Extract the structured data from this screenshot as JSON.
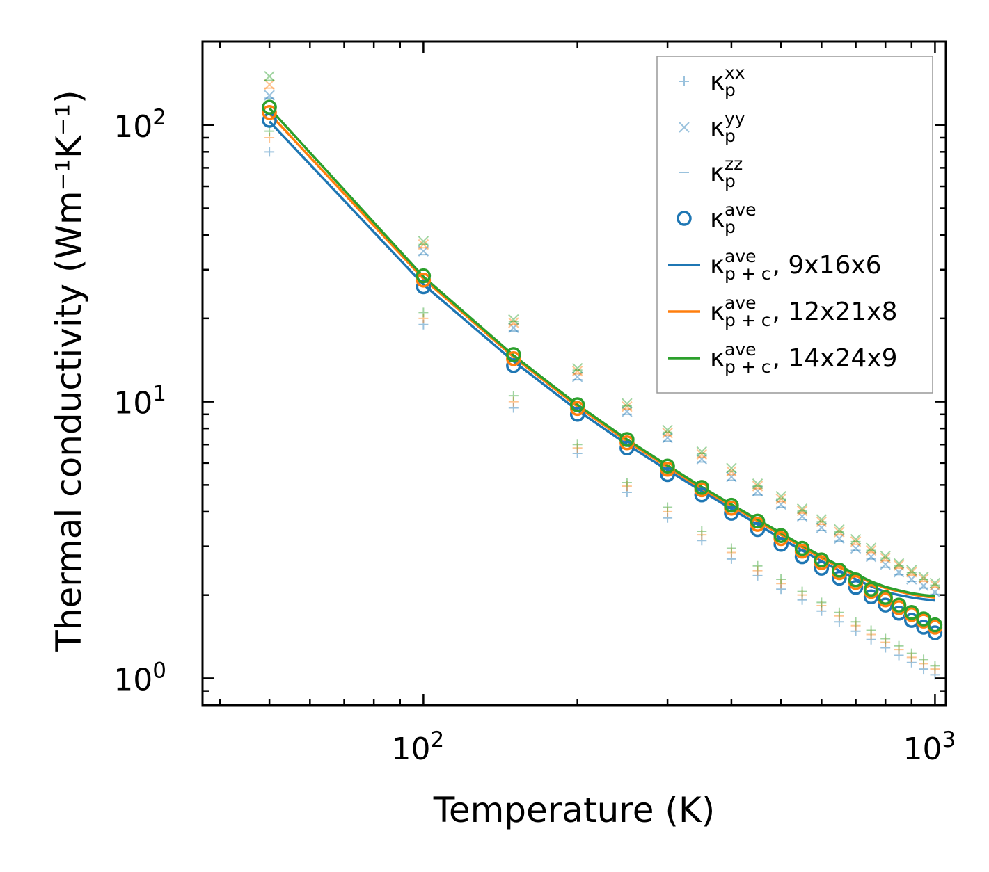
{
  "chart_data": {
    "type": "scatter",
    "xlabel": "Temperature (K)",
    "ylabel": "Thermal conductivity (Wm⁻¹K⁻¹)",
    "xscale": "log",
    "yscale": "log",
    "xlim": [
      37,
      1050
    ],
    "ylim": [
      0.8,
      200
    ],
    "x_ticks": [
      {
        "base": "10",
        "exp": "2",
        "value": 100
      },
      {
        "base": "10",
        "exp": "3",
        "value": 1000
      }
    ],
    "y_ticks": [
      {
        "base": "10",
        "exp": "0",
        "value": 1
      },
      {
        "base": "10",
        "exp": "1",
        "value": 10
      },
      {
        "base": "10",
        "exp": "2",
        "value": 100
      }
    ],
    "x": [
      50,
      100,
      150,
      200,
      250,
      300,
      350,
      400,
      450,
      500,
      550,
      600,
      650,
      700,
      750,
      800,
      850,
      900,
      950,
      1000
    ],
    "colors": {
      "blue": "#1f77b4",
      "orange": "#ff7f0e",
      "green": "#2ca02c"
    },
    "legend_position": "top-right",
    "meshes": [
      {
        "name": "9x16x6",
        "color_key": "blue",
        "kxx": [
          80,
          19,
          9.5,
          6.5,
          4.7,
          3.8,
          3.15,
          2.7,
          2.35,
          2.1,
          1.92,
          1.75,
          1.6,
          1.48,
          1.38,
          1.29,
          1.21,
          1.14,
          1.08,
          1.03
        ],
        "kyy": [
          128,
          35,
          18.5,
          12.3,
          9.2,
          7.4,
          6.2,
          5.35,
          4.75,
          4.25,
          3.85,
          3.5,
          3.2,
          2.95,
          2.75,
          2.58,
          2.42,
          2.28,
          2.16,
          2.05
        ],
        "kzz": [
          125,
          34,
          18,
          12,
          9,
          7.2,
          6.05,
          5.2,
          4.6,
          4.15,
          3.75,
          3.42,
          3.13,
          2.9,
          2.7,
          2.52,
          2.37,
          2.24,
          2.12,
          2.01
        ],
        "kave": [
          104,
          26,
          13.5,
          9.0,
          6.8,
          5.45,
          4.6,
          3.95,
          3.45,
          3.05,
          2.75,
          2.5,
          2.3,
          2.13,
          1.97,
          1.84,
          1.72,
          1.62,
          1.53,
          1.46
        ],
        "line": [
          103,
          26.5,
          14.0,
          9.3,
          7.0,
          5.65,
          4.75,
          4.1,
          3.6,
          3.2,
          2.9,
          2.65,
          2.45,
          2.28,
          2.15,
          2.05,
          2.0,
          1.96,
          1.93,
          1.91
        ]
      },
      {
        "name": "12x21x8",
        "color_key": "orange",
        "kxx": [
          90,
          20,
          10,
          6.8,
          4.95,
          4.0,
          3.3,
          2.85,
          2.45,
          2.2,
          2.0,
          1.83,
          1.68,
          1.55,
          1.44,
          1.35,
          1.27,
          1.19,
          1.13,
          1.08
        ],
        "kyy": [
          140,
          37,
          19.3,
          12.9,
          9.6,
          7.7,
          6.45,
          5.6,
          4.95,
          4.45,
          4.03,
          3.68,
          3.38,
          3.12,
          2.9,
          2.72,
          2.56,
          2.42,
          2.29,
          2.17
        ],
        "kzz": [
          136,
          36,
          19,
          12.6,
          9.4,
          7.55,
          6.3,
          5.45,
          4.85,
          4.35,
          3.95,
          3.6,
          3.3,
          3.05,
          2.85,
          2.66,
          2.5,
          2.36,
          2.24,
          2.13
        ],
        "kave": [
          111,
          27.5,
          14.3,
          9.45,
          7.1,
          5.7,
          4.8,
          4.12,
          3.6,
          3.2,
          2.88,
          2.62,
          2.41,
          2.22,
          2.06,
          1.92,
          1.8,
          1.7,
          1.61,
          1.53
        ],
        "line": [
          110,
          27.8,
          14.5,
          9.6,
          7.2,
          5.8,
          4.85,
          4.2,
          3.7,
          3.3,
          2.98,
          2.72,
          2.52,
          2.35,
          2.22,
          2.12,
          2.06,
          2.01,
          1.98,
          1.96
        ]
      },
      {
        "name": "14x24x9",
        "color_key": "green",
        "kxx": [
          95,
          21,
          10.5,
          7.0,
          5.1,
          4.15,
          3.4,
          2.95,
          2.55,
          2.28,
          2.06,
          1.88,
          1.73,
          1.6,
          1.49,
          1.39,
          1.31,
          1.23,
          1.17,
          1.11
        ],
        "kyy": [
          150,
          38,
          19.8,
          13.2,
          9.85,
          7.9,
          6.6,
          5.75,
          5.05,
          4.55,
          4.1,
          3.75,
          3.45,
          3.18,
          2.96,
          2.77,
          2.6,
          2.46,
          2.33,
          2.21
        ],
        "kzz": [
          145,
          37,
          19.5,
          13.0,
          9.65,
          7.75,
          6.5,
          5.6,
          4.95,
          4.45,
          4.03,
          3.68,
          3.38,
          3.12,
          2.9,
          2.72,
          2.55,
          2.41,
          2.28,
          2.17
        ],
        "kave": [
          116,
          28.5,
          14.8,
          9.75,
          7.3,
          5.85,
          4.9,
          4.22,
          3.7,
          3.28,
          2.95,
          2.68,
          2.46,
          2.27,
          2.1,
          1.96,
          1.84,
          1.73,
          1.64,
          1.56
        ],
        "line": [
          115,
          28.3,
          14.7,
          9.75,
          7.3,
          5.88,
          4.92,
          4.25,
          3.75,
          3.35,
          3.02,
          2.76,
          2.55,
          2.38,
          2.24,
          2.14,
          2.08,
          2.03,
          2.0,
          1.98
        ]
      }
    ],
    "legend": [
      {
        "kind": "plus",
        "symbol": "κ",
        "sub": "p",
        "sup": "xx",
        "suffix": ""
      },
      {
        "kind": "cross",
        "symbol": "κ",
        "sub": "p",
        "sup": "yy",
        "suffix": ""
      },
      {
        "kind": "dash",
        "symbol": "κ",
        "sub": "p",
        "sup": "zz",
        "suffix": ""
      },
      {
        "kind": "circle",
        "symbol": "κ",
        "sub": "p",
        "sup": "ave",
        "suffix": ""
      },
      {
        "kind": "line",
        "color_key": "blue",
        "symbol": "κ",
        "sub": "p + c",
        "sup": "ave",
        "suffix": ", 9x16x6"
      },
      {
        "kind": "line",
        "color_key": "orange",
        "symbol": "κ",
        "sub": "p + c",
        "sup": "ave",
        "suffix": ", 12x21x8"
      },
      {
        "kind": "line",
        "color_key": "green",
        "symbol": "κ",
        "sub": "p + c",
        "sup": "ave",
        "suffix": ", 14x24x9"
      }
    ]
  }
}
